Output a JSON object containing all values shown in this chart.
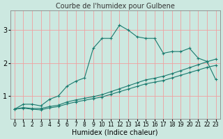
{
  "title": "Courbe de l'humidex pour Gulbene",
  "xlabel": "Humidex (Indice chaleur)",
  "xlim": [
    -0.5,
    23.5
  ],
  "ylim": [
    0.3,
    3.6
  ],
  "yticks": [
    1,
    2,
    3
  ],
  "xticks": [
    0,
    1,
    2,
    3,
    4,
    5,
    6,
    7,
    8,
    9,
    10,
    11,
    12,
    13,
    14,
    15,
    16,
    17,
    18,
    19,
    20,
    21,
    22,
    23
  ],
  "bg_color": "#cce8e0",
  "grid_color": "#f0a0a0",
  "line_color": "#1a7a6e",
  "line1_y": [
    0.6,
    0.75,
    0.75,
    0.7,
    0.9,
    1.0,
    1.3,
    1.45,
    1.55,
    2.45,
    2.75,
    2.75,
    3.15,
    3.0,
    2.8,
    2.75,
    2.75,
    2.3,
    2.35,
    2.35,
    2.45,
    2.15,
    2.05,
    1.5
  ],
  "line2_y": [
    0.6,
    0.65,
    0.62,
    0.62,
    0.68,
    0.72,
    0.82,
    0.88,
    0.93,
    0.98,
    1.04,
    1.13,
    1.22,
    1.31,
    1.4,
    1.49,
    1.54,
    1.6,
    1.68,
    1.77,
    1.86,
    1.95,
    2.04,
    2.12
  ],
  "line3_y": [
    0.6,
    0.63,
    0.6,
    0.58,
    0.64,
    0.68,
    0.76,
    0.82,
    0.87,
    0.92,
    0.97,
    1.05,
    1.13,
    1.21,
    1.29,
    1.37,
    1.42,
    1.47,
    1.55,
    1.63,
    1.71,
    1.79,
    1.87,
    1.93
  ],
  "title_fontsize": 7,
  "xlabel_fontsize": 7,
  "tick_fontsize": 5.5,
  "ytick_fontsize": 7
}
